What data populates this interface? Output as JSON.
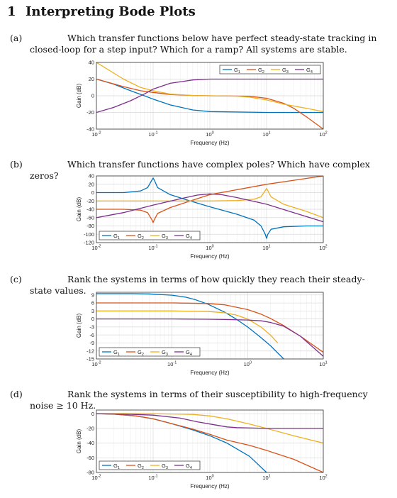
{
  "heading": {
    "number": "1",
    "title": "Interpreting Bode Plots"
  },
  "colors": {
    "G1": "#0072BD",
    "G2": "#D95319",
    "G3": "#EDB120",
    "G4": "#7E2F8E"
  },
  "parts": [
    {
      "label": "(a)",
      "question": "Which transfer functions below have perfect steady-state tracking in closed-loop for a step input? Which for a ramp? All systems are stable."
    },
    {
      "label": "(b)",
      "question": "Which transfer functions have complex poles? Which have complex zeros?"
    },
    {
      "label": "(c)",
      "question": "Rank the systems in terms of how quickly they reach their steady-state values."
    },
    {
      "label": "(d)",
      "question": "Rank the systems in terms of their susceptibility to high-frequency noise ≥ 10 Hz."
    }
  ],
  "chart_data": [
    {
      "type": "line",
      "xlabel": "Frequency (Hz)",
      "ylabel": "Gain (dB)",
      "xscale": "log",
      "xlim": [
        0.01,
        100
      ],
      "ylim": [
        -40,
        40
      ],
      "yticks": [
        -40,
        -20,
        0,
        20,
        40
      ],
      "xticks": [
        {
          "v": 0.01,
          "label": "10"
        },
        {
          "v": 0.1,
          "label": "10"
        },
        {
          "v": 1,
          "label": "10"
        },
        {
          "v": 10,
          "label": "10"
        },
        {
          "v": 100,
          "label": "10"
        }
      ],
      "xtick_exponents": [
        "-2",
        "-1",
        "0",
        "1",
        "2"
      ],
      "legend": {
        "placement": "top-right",
        "layout": "horizontal"
      },
      "series": [
        {
          "name": "G",
          "sub": "1",
          "x": [
            0.01,
            0.02,
            0.04,
            0.07,
            0.1,
            0.2,
            0.5,
            1,
            10,
            100
          ],
          "y": [
            20,
            14,
            6,
            0,
            -4,
            -11,
            -17,
            -19,
            -20,
            -20
          ]
        },
        {
          "name": "G",
          "sub": "2",
          "x": [
            0.01,
            0.03,
            0.06,
            0.1,
            0.2,
            0.5,
            1,
            5,
            10,
            20,
            30,
            50,
            100
          ],
          "y": [
            20,
            11,
            6,
            4,
            1.5,
            0.3,
            0,
            -0.5,
            -3,
            -9,
            -15,
            -25,
            -40
          ]
        },
        {
          "name": "G",
          "sub": "3",
          "x": [
            0.01,
            0.03,
            0.06,
            0.1,
            0.2,
            0.5,
            1,
            3,
            5,
            10,
            20,
            50,
            100
          ],
          "y": [
            40,
            20,
            10,
            6,
            2,
            0.3,
            0,
            -0.5,
            -1.5,
            -5,
            -10,
            -15,
            -19
          ]
        },
        {
          "name": "G",
          "sub": "4",
          "x": [
            0.01,
            0.02,
            0.04,
            0.07,
            0.1,
            0.2,
            0.5,
            1,
            10,
            100
          ],
          "y": [
            -20,
            -14,
            -6,
            2,
            8,
            15,
            19,
            20,
            20,
            20
          ]
        }
      ]
    },
    {
      "type": "line",
      "xlabel": "Frequency (Hz)",
      "ylabel": "Gain (dB)",
      "xscale": "log",
      "xlim": [
        0.01,
        100
      ],
      "ylim": [
        -120,
        40
      ],
      "yticks": [
        -120,
        -100,
        -80,
        -60,
        -40,
        -20,
        0,
        20,
        40
      ],
      "xticks": [
        {
          "v": 0.01,
          "label": "10"
        },
        {
          "v": 0.1,
          "label": "10"
        },
        {
          "v": 1,
          "label": "10"
        },
        {
          "v": 10,
          "label": "10"
        },
        {
          "v": 100,
          "label": "10"
        }
      ],
      "xtick_exponents": [
        "-2",
        "-1",
        "0",
        "1",
        "2"
      ],
      "legend": {
        "placement": "bottom-left",
        "layout": "horizontal"
      },
      "series": [
        {
          "name": "G",
          "sub": "1",
          "x": [
            0.01,
            0.03,
            0.06,
            0.08,
            0.095,
            0.1,
            0.105,
            0.12,
            0.2,
            0.5,
            1,
            3,
            6,
            8,
            9.5,
            10,
            10.5,
            12,
            20,
            50,
            100
          ],
          "y": [
            0,
            0,
            4,
            12,
            30,
            35,
            30,
            12,
            -5,
            -22,
            -34,
            -52,
            -66,
            -80,
            -100,
            -110,
            -100,
            -88,
            -82,
            -80,
            -80
          ]
        },
        {
          "name": "G",
          "sub": "2",
          "x": [
            0.01,
            0.03,
            0.06,
            0.08,
            0.095,
            0.1,
            0.105,
            0.12,
            0.2,
            0.5,
            1,
            10,
            100
          ],
          "y": [
            -40,
            -40,
            -42,
            -48,
            -65,
            -72,
            -65,
            -50,
            -36,
            -18,
            -5,
            20,
            40
          ]
        },
        {
          "name": "G",
          "sub": "3",
          "x": [
            0.01,
            0.1,
            1,
            3,
            6,
            8,
            9.5,
            10,
            10.5,
            12,
            20,
            50,
            100
          ],
          "y": [
            -20,
            -20,
            -20,
            -19,
            -16,
            -10,
            5,
            10,
            5,
            -10,
            -28,
            -45,
            -60
          ]
        },
        {
          "name": "G",
          "sub": "4",
          "x": [
            0.01,
            0.03,
            0.1,
            0.3,
            0.6,
            1,
            1.6,
            3,
            10,
            30,
            100
          ],
          "y": [
            -60,
            -48,
            -30,
            -15,
            -6,
            -3,
            -5,
            -12,
            -28,
            -48,
            -70
          ]
        }
      ]
    },
    {
      "type": "line",
      "xlabel": "Frequency (Hz)",
      "ylabel": "Gain (dB)",
      "xscale": "log",
      "xlim": [
        0.01,
        10
      ],
      "ylim": [
        -15,
        10
      ],
      "yticks": [
        -15,
        -12,
        -9,
        -6,
        -3,
        0,
        3,
        6,
        9
      ],
      "xticks": [
        {
          "v": 0.01,
          "label": "10"
        },
        {
          "v": 0.1,
          "label": "10"
        },
        {
          "v": 1,
          "label": "10"
        },
        {
          "v": 10,
          "label": "10"
        }
      ],
      "xtick_exponents": [
        "-2",
        "-1",
        "0",
        "1"
      ],
      "legend": {
        "placement": "bottom-left",
        "layout": "horizontal"
      },
      "series": [
        {
          "name": "G",
          "sub": "1",
          "x": [
            0.01,
            0.03,
            0.05,
            0.1,
            0.15,
            0.2,
            0.3,
            0.5,
            0.7,
            1,
            1.5,
            2,
            3
          ],
          "y": [
            9.5,
            9.5,
            9.4,
            8.9,
            8.2,
            7.3,
            5.5,
            2.5,
            0,
            -3,
            -7,
            -10,
            -15
          ]
        },
        {
          "name": "G",
          "sub": "2",
          "x": [
            0.01,
            0.1,
            0.3,
            0.5,
            1,
            1.5,
            2,
            3,
            5,
            10
          ],
          "y": [
            6,
            6,
            5.8,
            5.3,
            3.5,
            1.8,
            0.2,
            -2.5,
            -6.5,
            -12.5
          ]
        },
        {
          "name": "G",
          "sub": "3",
          "x": [
            0.01,
            0.1,
            0.3,
            0.5,
            0.7,
            1,
            1.5,
            2,
            2.5
          ],
          "y": [
            3,
            3,
            2.8,
            2.3,
            1.5,
            0,
            -3,
            -6,
            -9
          ]
        },
        {
          "name": "G",
          "sub": "4",
          "x": [
            0.01,
            0.1,
            0.3,
            0.5,
            1,
            1.5,
            2,
            3,
            5,
            10
          ],
          "y": [
            0,
            0,
            -0.1,
            -0.2,
            -0.4,
            -0.7,
            -1.3,
            -2.7,
            -6.5,
            -14
          ]
        }
      ]
    },
    {
      "type": "line",
      "xlabel": "Frequency (Hz)",
      "ylabel": "Gain (dB)",
      "xscale": "log",
      "xlim": [
        0.01,
        100
      ],
      "ylim": [
        -80,
        5
      ],
      "yticks": [
        -80,
        -60,
        -40,
        -20,
        0
      ],
      "xticks": [
        {
          "v": 0.01,
          "label": "10"
        },
        {
          "v": 0.1,
          "label": "10"
        },
        {
          "v": 1,
          "label": "10"
        },
        {
          "v": 10,
          "label": "10"
        },
        {
          "v": 100,
          "label": "10"
        }
      ],
      "xtick_exponents": [
        "-2",
        "-1",
        "0",
        "1",
        "2"
      ],
      "legend": {
        "placement": "bottom-left",
        "layout": "horizontal"
      },
      "series": [
        {
          "name": "G",
          "sub": "1",
          "x": [
            0.01,
            0.02,
            0.05,
            0.1,
            0.2,
            0.5,
            1,
            2,
            5,
            10
          ],
          "y": [
            0,
            -0.5,
            -3,
            -7,
            -13,
            -22,
            -30,
            -40,
            -58,
            -80
          ]
        },
        {
          "name": "G",
          "sub": "2",
          "x": [
            0.01,
            0.02,
            0.05,
            0.1,
            0.2,
            0.5,
            1,
            2,
            5,
            10,
            30,
            100
          ],
          "y": [
            0,
            -0.5,
            -3,
            -7,
            -13,
            -21,
            -28,
            -36,
            -43,
            -50,
            -62,
            -80
          ]
        },
        {
          "name": "G",
          "sub": "3",
          "x": [
            0.01,
            0.1,
            0.5,
            1,
            2,
            5,
            10,
            30,
            100
          ],
          "y": [
            0,
            0,
            -1,
            -3,
            -7,
            -14,
            -20,
            -30,
            -40
          ]
        },
        {
          "name": "G",
          "sub": "4",
          "x": [
            0.01,
            0.03,
            0.1,
            0.3,
            0.6,
            1,
            2,
            3,
            10,
            100
          ],
          "y": [
            0,
            -0.5,
            -2,
            -6,
            -11,
            -14,
            -18,
            -19,
            -20,
            -20
          ]
        }
      ]
    }
  ]
}
